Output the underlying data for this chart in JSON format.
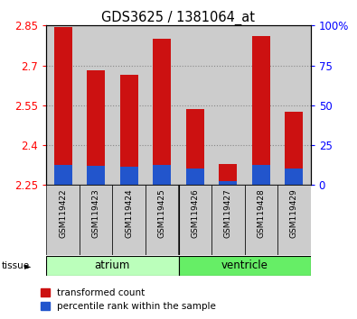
{
  "title": "GDS3625 / 1381064_at",
  "samples": [
    "GSM119422",
    "GSM119423",
    "GSM119424",
    "GSM119425",
    "GSM119426",
    "GSM119427",
    "GSM119428",
    "GSM119429"
  ],
  "red_values": [
    2.843,
    2.682,
    2.665,
    2.8,
    2.535,
    2.328,
    2.81,
    2.525
  ],
  "blue_values": [
    2.327,
    2.322,
    2.32,
    2.326,
    2.312,
    2.265,
    2.326,
    2.312
  ],
  "base": 2.25,
  "ylim": [
    2.25,
    2.85
  ],
  "yticks_left": [
    2.25,
    2.4,
    2.55,
    2.7,
    2.85
  ],
  "yticks_right": [
    0,
    25,
    50,
    75,
    100
  ],
  "groups": [
    {
      "name": "atrium",
      "indices": [
        0,
        1,
        2,
        3
      ],
      "color": "#bbffbb"
    },
    {
      "name": "ventricle",
      "indices": [
        4,
        5,
        6,
        7
      ],
      "color": "#66ee66"
    }
  ],
  "bar_width": 0.55,
  "red_color": "#cc1111",
  "blue_color": "#2255cc",
  "col_bg_color": "#cccccc",
  "grid_color": "#888888",
  "tissue_label": "tissue",
  "legend_red": "transformed count",
  "legend_blue": "percentile rank within the sample",
  "grid_yticks": [
    2.4,
    2.55,
    2.7
  ]
}
